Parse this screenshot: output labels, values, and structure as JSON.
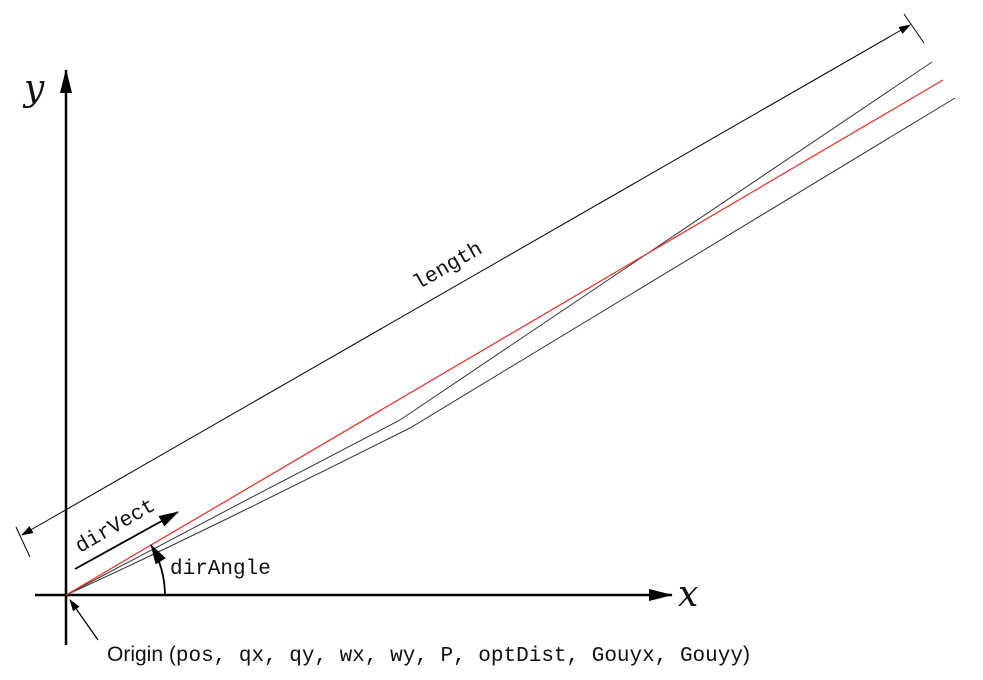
{
  "axes": {
    "x_label": "x",
    "y_label": "y"
  },
  "labels": {
    "length": "length",
    "dir_vect": "dirVect",
    "dir_angle": "dirAngle"
  },
  "origin_caption": {
    "prefix": "Origin (",
    "params": "pos, qx, qy, wx, wy, P, optDist, Gouyx, Gouyy",
    "suffix": ")"
  },
  "colors": {
    "axis": "#000000",
    "beam_center": "#e53935",
    "beam_envelope": "#333333",
    "annotation": "#000000"
  }
}
